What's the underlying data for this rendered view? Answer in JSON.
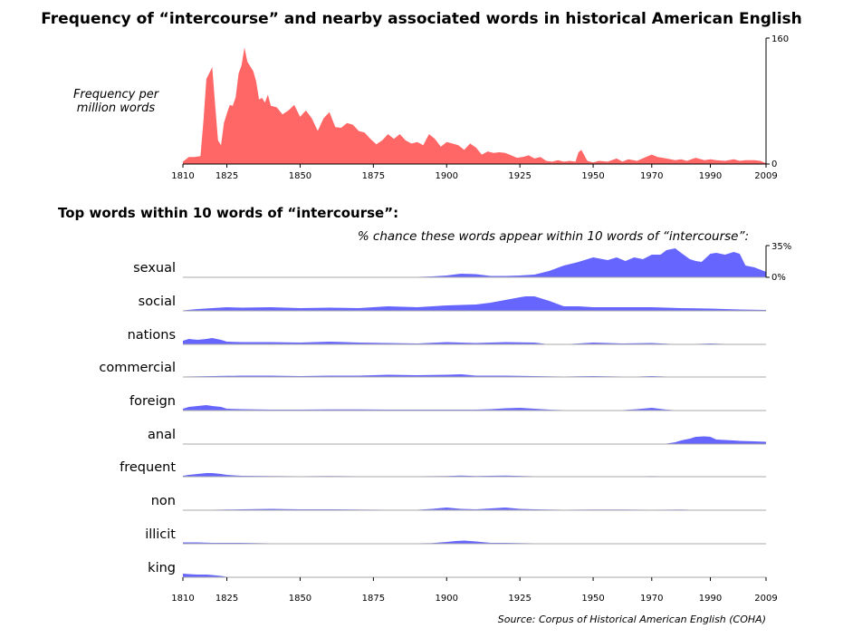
{
  "title": "Frequency of “intercourse” and nearby associated words in historical American English",
  "freq_ylabel": "Frequency per million words",
  "subtitle": "Top words within 10 words of “intercourse”:",
  "pct_title": "% chance these words appear within 10 words of “intercourse”:",
  "source": "Source: Corpus of Historical American English (COHA)",
  "colors": {
    "frequency": "#ff6666",
    "words": "#6666ff",
    "baseline": "#000000",
    "word_baseline": "#aaaaaa"
  },
  "chart_data": [
    {
      "type": "area",
      "title": "Frequency of “intercourse” and nearby associated words in historical American English",
      "ylabel": "Frequency per million words",
      "xlim": [
        1810,
        2009
      ],
      "ylim": [
        0,
        160
      ],
      "x_ticks": [
        "1810",
        "1825",
        "1850",
        "1875",
        "1900",
        "1925",
        "1950",
        "1970",
        "1990",
        "2009"
      ],
      "y_ticks": [
        "160",
        "0"
      ],
      "x": [
        1810,
        1812,
        1814,
        1816,
        1817,
        1818,
        1820,
        1821,
        1822,
        1823,
        1824,
        1825,
        1826,
        1827,
        1828,
        1829,
        1830,
        1831,
        1832,
        1834,
        1835,
        1836,
        1837,
        1838,
        1839,
        1840,
        1842,
        1844,
        1846,
        1848,
        1850,
        1852,
        1854,
        1856,
        1858,
        1860,
        1862,
        1864,
        1866,
        1868,
        1870,
        1872,
        1874,
        1876,
        1878,
        1880,
        1882,
        1884,
        1886,
        1888,
        1890,
        1892,
        1894,
        1896,
        1898,
        1900,
        1902,
        1904,
        1906,
        1908,
        1910,
        1912,
        1914,
        1916,
        1918,
        1920,
        1922,
        1924,
        1926,
        1928,
        1930,
        1932,
        1934,
        1936,
        1938,
        1940,
        1942,
        1944,
        1945,
        1946,
        1948,
        1950,
        1952,
        1955,
        1958,
        1960,
        1962,
        1965,
        1968,
        1970,
        1972,
        1975,
        1978,
        1980,
        1982,
        1985,
        1988,
        1990,
        1992,
        1995,
        1998,
        2000,
        2002,
        2005,
        2007,
        2009
      ],
      "values": [
        3,
        9,
        9,
        10,
        55,
        108,
        123,
        75,
        30,
        24,
        52,
        64,
        75,
        74,
        85,
        115,
        125,
        148,
        130,
        118,
        105,
        82,
        84,
        78,
        88,
        74,
        72,
        63,
        68,
        75,
        60,
        68,
        58,
        42,
        58,
        66,
        47,
        46,
        52,
        50,
        42,
        40,
        32,
        25,
        30,
        38,
        32,
        38,
        30,
        26,
        28,
        24,
        38,
        32,
        22,
        28,
        26,
        24,
        18,
        26,
        21,
        12,
        16,
        14,
        15,
        14,
        11,
        8,
        9,
        11,
        7,
        9,
        4,
        3,
        5,
        3,
        4,
        3,
        15,
        18,
        4,
        2,
        4,
        3,
        7,
        3,
        6,
        4,
        9,
        12,
        9,
        7,
        5,
        6,
        4,
        8,
        5,
        6,
        5,
        4,
        6,
        4,
        5,
        5,
        4,
        1
      ]
    },
    {
      "type": "area",
      "title": "% chance these words appear within 10 words of “intercourse”:",
      "xlim": [
        1810,
        2009
      ],
      "ylim": [
        0,
        35
      ],
      "y_ticks": [
        "35%",
        "0%"
      ],
      "x_ticks": [
        "1810",
        "1825",
        "1850",
        "1875",
        "1900",
        "1925",
        "1950",
        "1970",
        "1990",
        "2009"
      ],
      "series": [
        {
          "name": "sexual",
          "x": [
            1810,
            1840,
            1870,
            1880,
            1890,
            1895,
            1900,
            1905,
            1910,
            1915,
            1920,
            1925,
            1930,
            1935,
            1940,
            1945,
            1950,
            1955,
            1958,
            1961,
            1964,
            1967,
            1970,
            1973,
            1975,
            1978,
            1980,
            1983,
            1985,
            1987,
            1990,
            1992,
            1995,
            1998,
            2000,
            2002,
            2005,
            2009
          ],
          "values": [
            0,
            0,
            0,
            0.3,
            0.5,
            1,
            2,
            4,
            3.5,
            1.5,
            1.5,
            2,
            3,
            7,
            13,
            17,
            22,
            19,
            22,
            18,
            22,
            20,
            25,
            25,
            30,
            32,
            27,
            20,
            18,
            17,
            26,
            27,
            25,
            28,
            26,
            13,
            11,
            6
          ]
        },
        {
          "name": "social",
          "x": [
            1810,
            1815,
            1820,
            1825,
            1830,
            1840,
            1850,
            1860,
            1870,
            1875,
            1880,
            1890,
            1900,
            1910,
            1915,
            1920,
            1925,
            1927,
            1930,
            1935,
            1940,
            1945,
            1950,
            1960,
            1970,
            1980,
            1990,
            2000,
            2009
          ],
          "values": [
            0.5,
            2,
            3,
            4,
            3.5,
            4,
            3,
            3.5,
            3,
            4,
            5,
            4,
            6,
            7,
            9,
            12,
            15,
            16,
            16,
            11,
            5,
            5,
            4,
            4,
            4,
            3,
            2.5,
            1.5,
            1
          ]
        },
        {
          "name": "nations",
          "x": [
            1810,
            1812,
            1815,
            1818,
            1820,
            1823,
            1825,
            1830,
            1840,
            1850,
            1860,
            1870,
            1880,
            1890,
            1900,
            1910,
            1920,
            1930,
            1935,
            1940,
            1950,
            1960,
            1970,
            1980,
            1985,
            1990,
            1995,
            2000,
            2005,
            2009
          ],
          "values": [
            4,
            6,
            5,
            6,
            7,
            5,
            3,
            2.5,
            2.5,
            2,
            3,
            2,
            1.5,
            1,
            2.5,
            1.5,
            2.5,
            2,
            0,
            0,
            2,
            1,
            1.5,
            0,
            0.5,
            1,
            0.5,
            0.5,
            0,
            0
          ]
        },
        {
          "name": "commercial",
          "x": [
            1810,
            1820,
            1830,
            1840,
            1850,
            1860,
            1870,
            1875,
            1880,
            1890,
            1900,
            1905,
            1910,
            1920,
            1930,
            1940,
            1950,
            1960,
            1965,
            1970,
            1980,
            1990,
            2009
          ],
          "values": [
            0.5,
            1,
            1.5,
            1.5,
            1,
            1.5,
            1.5,
            2,
            2.5,
            2,
            2.5,
            3,
            1.5,
            1.5,
            1,
            0.5,
            1,
            0.5,
            0.5,
            1,
            0,
            0,
            0
          ]
        },
        {
          "name": "foreign",
          "x": [
            1810,
            1812,
            1815,
            1818,
            1820,
            1823,
            1825,
            1830,
            1840,
            1850,
            1860,
            1870,
            1880,
            1890,
            1900,
            1910,
            1915,
            1920,
            1925,
            1930,
            1935,
            1940,
            1950,
            1960,
            1965,
            1970,
            1975,
            1980,
            1990,
            2009
          ],
          "values": [
            2,
            4,
            5,
            6,
            5,
            4,
            2,
            1.5,
            1,
            1,
            1.2,
            1.2,
            1,
            1,
            1,
            1,
            1.5,
            2.5,
            3,
            2,
            1,
            0.5,
            0.5,
            0.5,
            1.5,
            3,
            1,
            0,
            0,
            0
          ]
        },
        {
          "name": "anal",
          "x": [
            1810,
            1970,
            1975,
            1978,
            1980,
            1983,
            1985,
            1988,
            1990,
            1992,
            1995,
            1998,
            2000,
            2005,
            2009
          ],
          "values": [
            0,
            0,
            0.5,
            2,
            4,
            6,
            8,
            8.5,
            8,
            5,
            4.5,
            4,
            3.5,
            3,
            2.5
          ]
        },
        {
          "name": "frequent",
          "x": [
            1810,
            1812,
            1815,
            1818,
            1820,
            1823,
            1825,
            1830,
            1840,
            1850,
            1860,
            1870,
            1880,
            1890,
            1900,
            1905,
            1910,
            1915,
            1920,
            1930,
            1940,
            1950,
            1960,
            1970,
            1980,
            1990,
            2009
          ],
          "values": [
            1,
            2,
            3,
            4,
            4,
            3,
            2,
            1,
            0.8,
            0.5,
            0.8,
            0.5,
            0.5,
            0.5,
            0.8,
            1.2,
            0.8,
            1,
            1.2,
            0.5,
            0.5,
            0.5,
            0.3,
            0.6,
            0.3,
            0,
            0
          ]
        },
        {
          "name": "non",
          "x": [
            1810,
            1820,
            1830,
            1840,
            1850,
            1860,
            1870,
            1880,
            1890,
            1895,
            1900,
            1905,
            1910,
            1915,
            1920,
            1925,
            1930,
            1940,
            1950,
            1960,
            1970,
            1980,
            1990,
            2009
          ],
          "values": [
            0,
            0.5,
            1,
            1.5,
            1,
            1,
            0.8,
            0.5,
            0.5,
            1.5,
            3,
            1.5,
            1,
            2,
            3,
            1.5,
            1,
            0.5,
            0.8,
            0.8,
            0.5,
            0.8,
            0,
            0
          ]
        },
        {
          "name": "illicit",
          "x": [
            1810,
            1815,
            1820,
            1830,
            1840,
            1850,
            1860,
            1870,
            1880,
            1890,
            1895,
            1900,
            1903,
            1906,
            1910,
            1915,
            1920,
            1930,
            1940,
            1950,
            1960,
            1970,
            1980,
            2009
          ],
          "values": [
            1.5,
            1.5,
            1,
            1,
            0.5,
            0.5,
            0.5,
            0.3,
            0.3,
            0.5,
            0.8,
            2,
            3,
            3.5,
            2.5,
            1,
            1,
            0.5,
            0.5,
            0.5,
            0.3,
            0,
            0,
            0
          ]
        },
        {
          "name": "king",
          "x": [
            1810,
            1812,
            1815,
            1818,
            1820,
            1823,
            1825,
            1830,
            1850,
            1900,
            1910,
            1950,
            2009
          ],
          "values": [
            4,
            3.5,
            3,
            3,
            2.5,
            1.5,
            0.5,
            0.3,
            0.3,
            0.3,
            0,
            0,
            0
          ]
        }
      ]
    }
  ]
}
